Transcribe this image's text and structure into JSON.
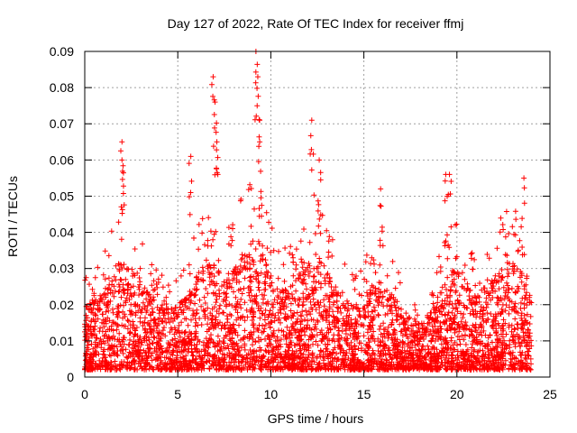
{
  "chart_data": {
    "type": "scatter",
    "title": "Day 127 of 2022, Rate Of TEC Index for receiver ffmj",
    "xlabel": "GPS time / hours",
    "ylabel": "ROTI / TECUs",
    "xlim": [
      0,
      25
    ],
    "ylim": [
      0,
      0.09
    ],
    "xticks": [
      "0",
      "5",
      "10",
      "15",
      "20",
      "25"
    ],
    "yticks": [
      "0",
      "0.01",
      "0.02",
      "0.03",
      "0.04",
      "0.05",
      "0.06",
      "0.07",
      "0.08",
      "0.09"
    ],
    "grid": true,
    "marker": "+",
    "color": "#ff0000",
    "data_range_x": [
      0,
      24
    ],
    "series": [
      {
        "peaks": [
          {
            "x": 2.0,
            "y": 0.065
          },
          {
            "x": 2.0,
            "y": 0.06
          },
          {
            "x": 5.7,
            "y": 0.061
          },
          {
            "x": 6.9,
            "y": 0.083
          },
          {
            "x": 7.0,
            "y": 0.076
          },
          {
            "x": 7.1,
            "y": 0.065
          },
          {
            "x": 9.2,
            "y": 0.09
          },
          {
            "x": 9.3,
            "y": 0.083
          },
          {
            "x": 9.4,
            "y": 0.071
          },
          {
            "x": 12.2,
            "y": 0.071
          },
          {
            "x": 12.6,
            "y": 0.06
          },
          {
            "x": 15.9,
            "y": 0.052
          },
          {
            "x": 19.4,
            "y": 0.056
          },
          {
            "x": 19.6,
            "y": 0.056
          },
          {
            "x": 23.6,
            "y": 0.055
          }
        ]
      }
    ]
  }
}
